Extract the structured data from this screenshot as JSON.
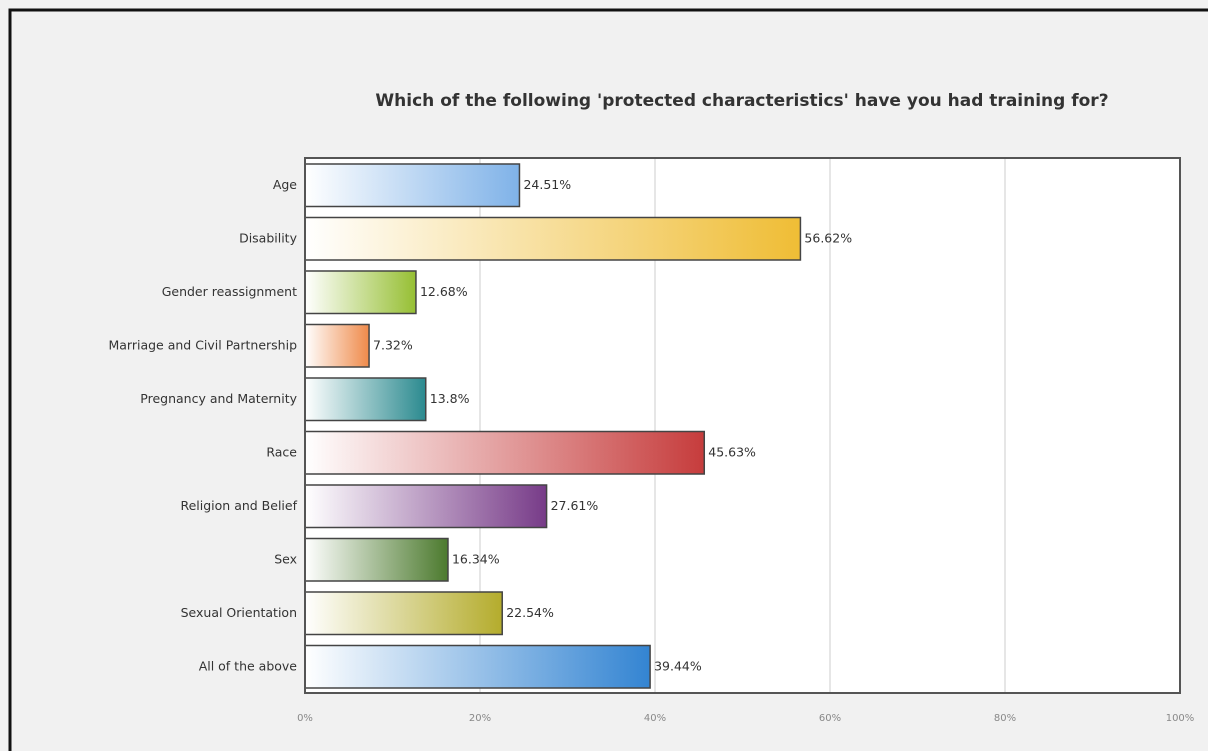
{
  "chart_data": {
    "type": "bar",
    "orientation": "horizontal",
    "title": "Which of the following 'protected characteristics' have you had training for?",
    "categories": [
      "Age",
      "Disability",
      "Gender reassignment",
      "Marriage and Civil Partnership",
      "Pregnancy and Maternity",
      "Race",
      "Religion and Belief",
      "Sex",
      "Sexual Orientation",
      "All of the above"
    ],
    "values": [
      24.51,
      56.62,
      12.68,
      7.32,
      13.8,
      45.63,
      27.61,
      16.34,
      22.54,
      39.44
    ],
    "value_labels": [
      "24.51%",
      "56.62%",
      "12.68%",
      "7.32%",
      "13.8%",
      "45.63%",
      "27.61%",
      "16.34%",
      "22.54%",
      "39.44%"
    ],
    "colors": [
      "#7fb2e8",
      "#efbd35",
      "#96bf33",
      "#ef8a4a",
      "#2b8a8f",
      "#c63c3c",
      "#773b88",
      "#4c7a2e",
      "#b4ac2c",
      "#3384d2"
    ],
    "xlim": [
      0,
      100
    ],
    "xticks": [
      {
        "value": 0,
        "label": "0%"
      },
      {
        "value": 20,
        "label": "20%"
      },
      {
        "value": 40,
        "label": "40%"
      },
      {
        "value": 60,
        "label": "60%"
      },
      {
        "value": 80,
        "label": "80%"
      },
      {
        "value": 100,
        "label": "100%"
      }
    ],
    "grid": true
  }
}
